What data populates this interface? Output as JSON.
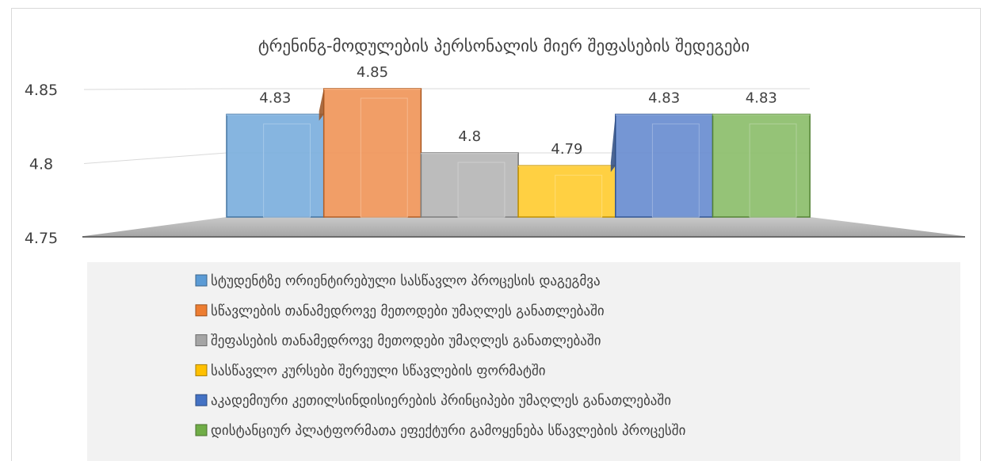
{
  "chart_data": {
    "type": "bar",
    "title": "ტრენინგ-მოდულების პერსონალის მიერ შეფასების შედეგები",
    "xlabel": "",
    "ylabel": "",
    "ylim": [
      4.75,
      4.85
    ],
    "y_ticks": [
      "4.75",
      "4.8",
      "4.85"
    ],
    "grid": true,
    "legend_position": "bottom",
    "series": [
      {
        "name": "სტუდენტზე ორიენტირებული სასწავლო პროცესის დაგეგმვა",
        "value": 4.83,
        "label": "4.83",
        "color": "#5B9BD5"
      },
      {
        "name": "სწავლების თანამედროვე მეთოდები უმაღლეს განათლებაში",
        "value": 4.85,
        "label": "4.85",
        "color": "#ED7D31"
      },
      {
        "name": "შეფასების თანამედროვე მეთოდები უმაღლეს განათლებაში",
        "value": 4.8,
        "label": "4.8",
        "color": "#A5A5A5"
      },
      {
        "name": "სასწავლო კურსები შერეული სწავლების ფორმატში",
        "value": 4.79,
        "label": "4.79",
        "color": "#FFC000"
      },
      {
        "name": "აკადემიური კეთილსინდისიერების პრინციპები უმაღლეს განათლებაში",
        "value": 4.83,
        "label": "4.83",
        "color": "#4472C4"
      },
      {
        "name": "დისტანციურ პლატფორმათა ეფექტური გამოყენება სწავლების პროცესში",
        "value": 4.83,
        "label": "4.83",
        "color": "#70AD47"
      }
    ]
  }
}
